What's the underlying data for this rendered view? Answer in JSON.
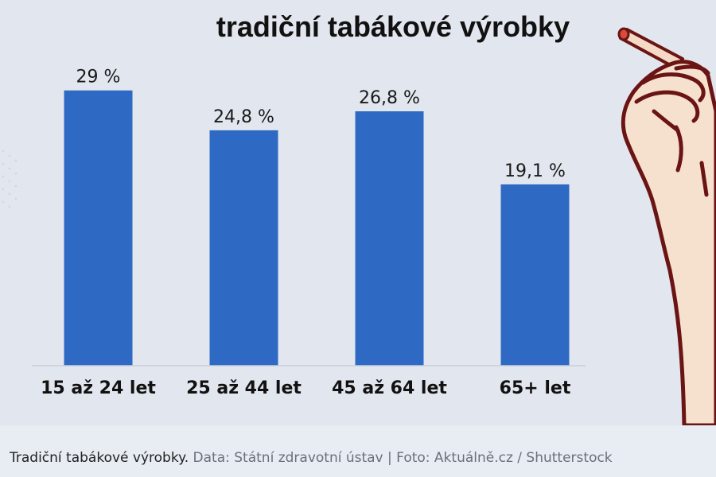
{
  "caption": {
    "text": "Tradiční tabákové výrobky.",
    "credit": "Data: Státní zdravotní ústav | Foto: Aktuálně.cz / Shutterstock"
  },
  "colors": {
    "bar": "#2e6ac4",
    "figure_background": "#e2e6ee",
    "page_background": "#e8ecf3",
    "hand_outline": "#6b1414",
    "hand_fill": "#f6e1cf"
  },
  "chart_data": {
    "type": "bar",
    "title": "tradiční tabákové výrobky",
    "categories": [
      "15 až 24 let",
      "25 až 44 let",
      "45 až 64 let",
      "65+ let"
    ],
    "values": [
      29,
      24.8,
      26.8,
      19.1
    ],
    "value_labels": [
      "29 %",
      "24,8 %",
      "26,8 %",
      "19,1 %"
    ],
    "unit": "%",
    "ylim": [
      0,
      33.5
    ],
    "grid": false,
    "xlabel": "",
    "ylabel": ""
  }
}
